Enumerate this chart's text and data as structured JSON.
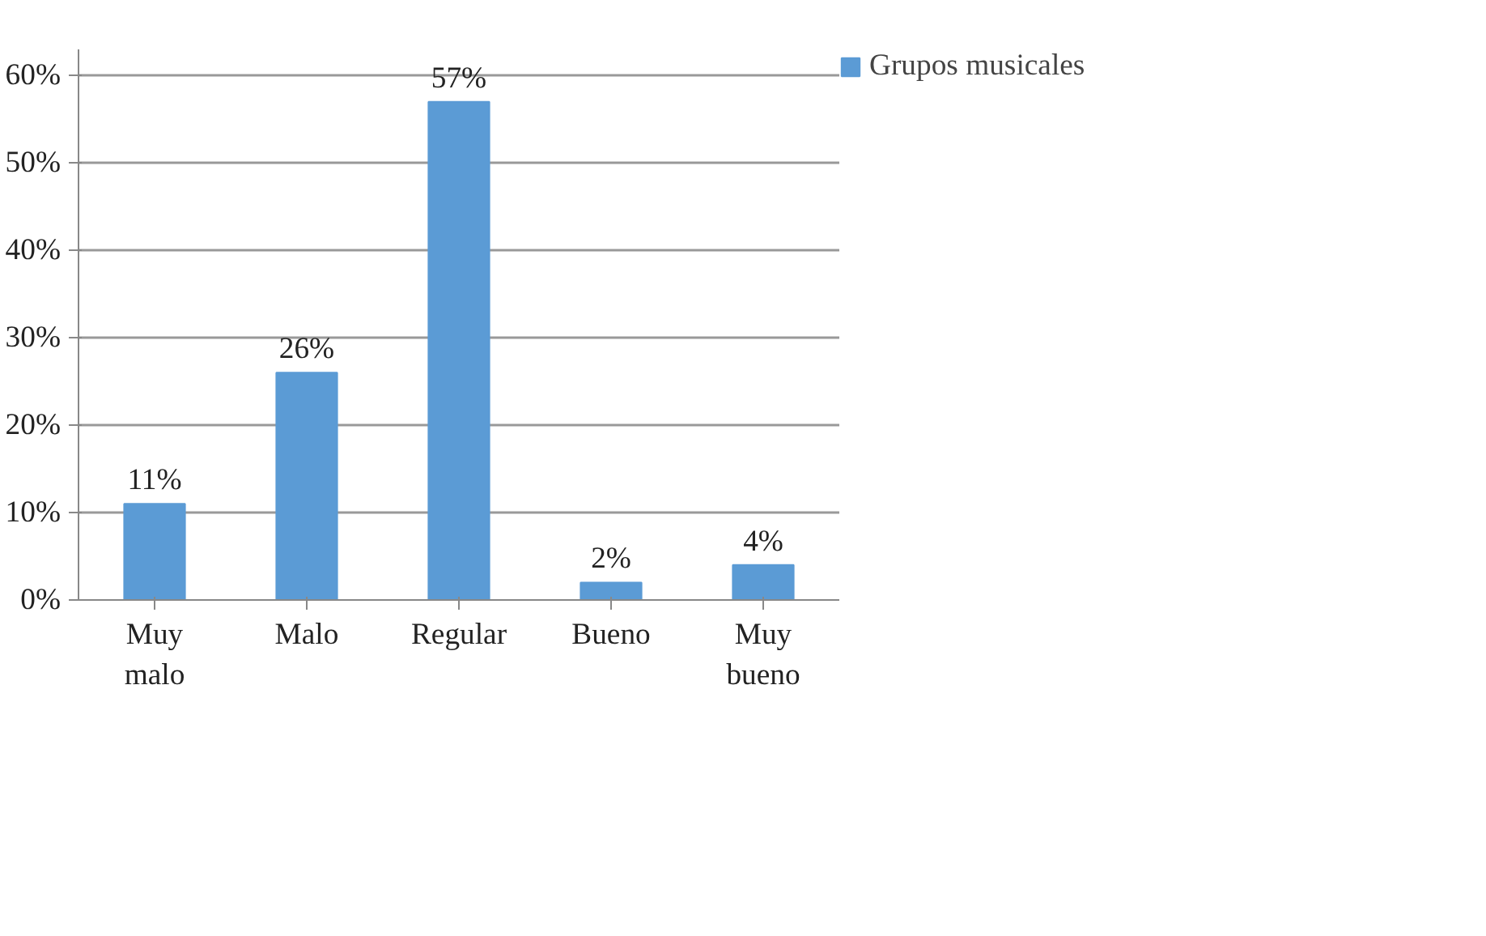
{
  "chart_data": {
    "type": "bar",
    "categories": [
      "Muy malo",
      "Malo",
      "Regular",
      "Bueno",
      "Muy bueno"
    ],
    "series": [
      {
        "name": "Grupos musicales",
        "color": "#5b9bd5",
        "values": [
          11,
          26,
          57,
          2,
          4
        ],
        "value_labels": [
          "11%",
          "26%",
          "57%",
          "2%",
          "4%"
        ]
      }
    ],
    "ylim": [
      0,
      63
    ],
    "yticks": [
      {
        "value": 0,
        "label": "0%"
      },
      {
        "value": 10,
        "label": "10%"
      },
      {
        "value": 20,
        "label": "20%"
      },
      {
        "value": 30,
        "label": "30%"
      },
      {
        "value": 40,
        "label": "40%"
      },
      {
        "value": 50,
        "label": "50%"
      },
      {
        "value": 60,
        "label": "60%"
      }
    ],
    "grid": "y",
    "legend": "right"
  }
}
